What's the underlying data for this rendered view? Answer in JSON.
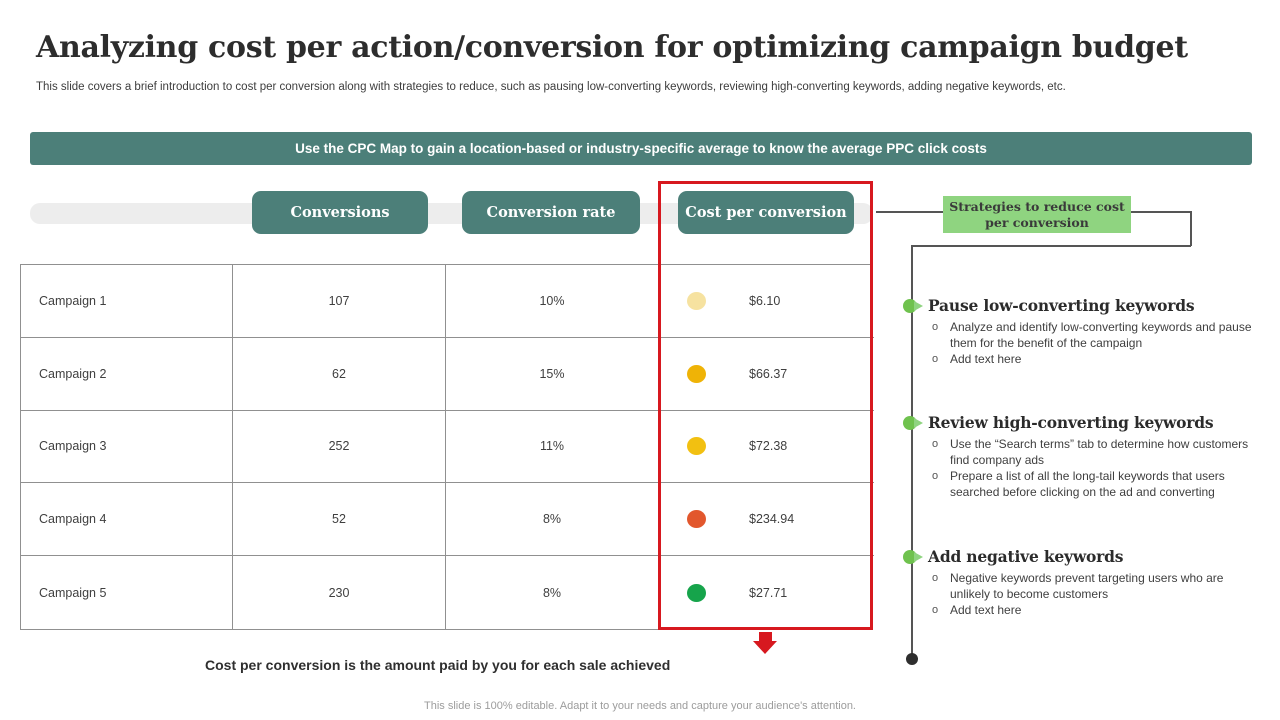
{
  "slide": {
    "title": "Analyzing cost per action/conversion for optimizing campaign budget",
    "subtitle": "This slide covers a brief introduction to cost per conversion along with strategies to reduce, such as pausing low-converting keywords, reviewing high-converting keywords, adding negative keywords, etc.",
    "banner": "Use the CPC Map to gain a location-based or industry-specific average to know the average PPC click costs",
    "caption": "Cost per conversion is the amount paid by you for each sale achieved",
    "footer": "This slide is 100% editable. Adapt it to your needs and capture your audience's attention."
  },
  "table": {
    "columns": [
      "Conversions",
      "Conversion rate",
      "Cost per conversion"
    ],
    "rows": [
      {
        "name": "Campaign 1",
        "conversions": "107",
        "rate": "10%",
        "cost": "$6.10",
        "dot_color": "#F6E2A0"
      },
      {
        "name": "Campaign 2",
        "conversions": "62",
        "rate": "15%",
        "cost": "$66.37",
        "dot_color": "#EFB306"
      },
      {
        "name": "Campaign 3",
        "conversions": "252",
        "rate": "11%",
        "cost": "$72.38",
        "dot_color": "#F2C011"
      },
      {
        "name": "Campaign 4",
        "conversions": "52",
        "rate": "8%",
        "cost": "$234.94",
        "dot_color": "#E2572D"
      },
      {
        "name": "Campaign 5",
        "conversions": "230",
        "rate": "8%",
        "cost": "$27.71",
        "dot_color": "#16A44B"
      }
    ]
  },
  "strategies": {
    "label": "Strategies to reduce cost per conversion",
    "items": [
      {
        "heading": "Pause low-converting keywords",
        "bullets": [
          "Analyze and identify low-converting keywords and pause them for the benefit of the campaign",
          "Add text here"
        ]
      },
      {
        "heading": "Review high-converting keywords",
        "bullets": [
          "Use the “Search terms” tab to determine how customers find company ads",
          "Prepare a list of all the long-tail keywords that users searched before clicking on the ad and converting"
        ]
      },
      {
        "heading": "Add negative keywords",
        "bullets": [
          "Negative keywords prevent targeting users who are unlikely to become customers",
          "Add text here"
        ]
      }
    ]
  },
  "colors": {
    "teal": "#4C7F79",
    "highlight_red": "#D7181F",
    "green_label_bg": "#8FD480",
    "marker_green": "#6FC24E",
    "connector": "#555555",
    "dots": [
      "#F6E2A0",
      "#EFB306",
      "#F2C011",
      "#E2572D",
      "#16A44B"
    ]
  }
}
